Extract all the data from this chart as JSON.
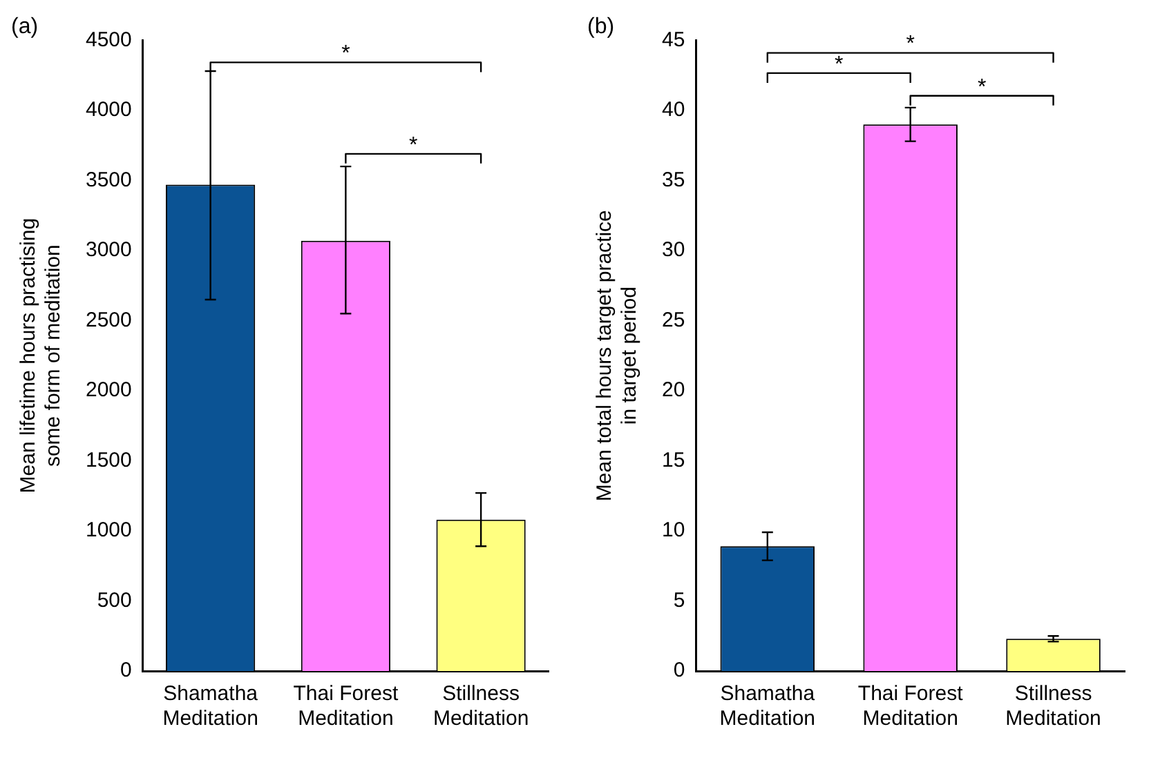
{
  "chart_data": [
    {
      "type": "bar",
      "title": "(a)",
      "ylabel": "Mean lifetime hours practising some form of meditation",
      "categories": [
        "Shamatha Meditation",
        "Thai Forest Meditation",
        "Stillness Meditation"
      ],
      "values": [
        3470,
        3070,
        1080
      ],
      "colors": [
        "#0b5394",
        "#ff80ff",
        "#ffff80"
      ],
      "errors": [
        [
          2650,
          4280
        ],
        [
          2550,
          3600
        ],
        [
          890,
          1270
        ]
      ],
      "ylim": [
        0,
        4500
      ],
      "yticks": [
        0,
        500,
        1000,
        1500,
        2000,
        2500,
        3000,
        3500,
        4000,
        4500
      ],
      "grid": false,
      "annotations": [
        "*",
        "*"
      ]
    },
    {
      "type": "bar",
      "title": "(b)",
      "ylabel": "Mean total hours target practice in target period",
      "categories": [
        "Shamatha Meditation",
        "Thai Forest Meditation",
        "Stillness Meditation"
      ],
      "values": [
        8.9,
        39,
        2.3
      ],
      "colors": [
        "#0b5394",
        "#ff80ff",
        "#ffff80"
      ],
      "errors": [
        [
          7.9,
          9.9
        ],
        [
          37.8,
          40.2
        ],
        [
          2.1,
          2.5
        ]
      ],
      "ylim": [
        0,
        45
      ],
      "yticks": [
        0,
        5,
        10,
        15,
        20,
        25,
        30,
        35,
        40,
        45
      ],
      "grid": false,
      "annotations": [
        "*",
        "*",
        "*"
      ]
    }
  ]
}
